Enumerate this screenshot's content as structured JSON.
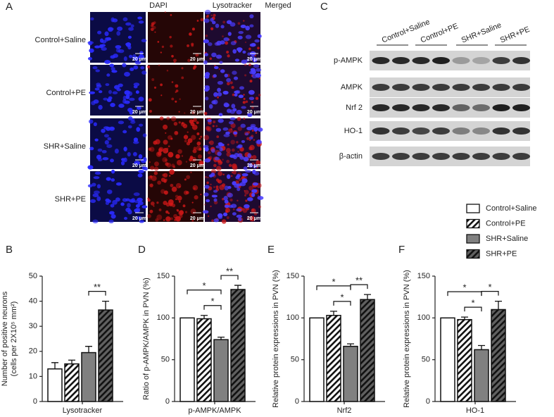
{
  "panel_a": {
    "letter": "A",
    "columns": [
      "DAPI",
      "Lysotracker",
      "Merged"
    ],
    "rows": [
      "Control+Saline",
      "Control+PE",
      "SHR+Saline",
      "SHR+PE"
    ],
    "scale_bar": "20 μm"
  },
  "panel_c": {
    "letter": "C",
    "groups": [
      "Control+Saline",
      "Control+PE",
      "SHR+Saline",
      "SHR+PE"
    ],
    "proteins": [
      "p-AMPK",
      "AMPK",
      "Nrf 2",
      "HO-1",
      "β-actin"
    ]
  },
  "legend": {
    "entries": [
      {
        "label": "Control+Saline",
        "color": "#ffffff",
        "hatch": false
      },
      {
        "label": "Control+PE",
        "color": "#ffffff",
        "hatch": true
      },
      {
        "label": "SHR+Saline",
        "color": "#808080",
        "hatch": false
      },
      {
        "label": "SHR+PE",
        "color": "#606060",
        "hatch": true
      }
    ]
  },
  "chart_data": [
    {
      "type": "bar",
      "panel": "B",
      "ylabel": [
        "Number of positive neurons",
        "(cells per 2X10⁵ mm²)"
      ],
      "xlabel": "Lysotracker",
      "values": [
        13,
        15,
        19.5,
        36.5
      ],
      "errors": [
        2.5,
        1.5,
        2.5,
        3.5
      ],
      "ylim": [
        0,
        50
      ],
      "yticks": [
        0,
        10,
        20,
        30,
        40,
        50
      ],
      "significance": [
        {
          "text": "**",
          "bars": [
            2,
            3
          ]
        }
      ]
    },
    {
      "type": "bar",
      "panel": "D",
      "ylabel": [
        "Ratio of p-AMPK/AMPK in PVN (%)"
      ],
      "xlabel": "p-AMPK/AMPK",
      "values": [
        100,
        99,
        74,
        134
      ],
      "errors": [
        0,
        4,
        3,
        5
      ],
      "ylim": [
        0,
        150
      ],
      "yticks": [
        0,
        50,
        100,
        150
      ],
      "significance": [
        {
          "text": "*",
          "bars": [
            1,
            2
          ]
        },
        {
          "text": "*",
          "bars": [
            0,
            2
          ]
        },
        {
          "text": "**",
          "bars": [
            2,
            3
          ]
        }
      ]
    },
    {
      "type": "bar",
      "panel": "E",
      "ylabel": [
        "Relative protein expressions in PVN (%)"
      ],
      "xlabel": "Nrf2",
      "values": [
        100,
        103,
        66,
        122
      ],
      "errors": [
        0,
        5,
        3,
        6
      ],
      "ylim": [
        0,
        150
      ],
      "yticks": [
        0,
        50,
        100,
        150
      ],
      "significance": [
        {
          "text": "*",
          "bars": [
            1,
            2
          ]
        },
        {
          "text": "*",
          "bars": [
            0,
            2
          ]
        },
        {
          "text": "**",
          "bars": [
            2,
            3
          ]
        }
      ]
    },
    {
      "type": "bar",
      "panel": "F",
      "ylabel": [
        "Relative protein expressions in PVN (%)"
      ],
      "xlabel": "HO-1",
      "values": [
        100,
        98,
        62,
        110
      ],
      "errors": [
        0,
        3,
        5,
        10
      ],
      "ylim": [
        0,
        150
      ],
      "yticks": [
        0,
        50,
        100,
        150
      ],
      "significance": [
        {
          "text": "*",
          "bars": [
            1,
            2
          ]
        },
        {
          "text": "*",
          "bars": [
            0,
            2
          ]
        },
        {
          "text": "*",
          "bars": [
            2,
            3
          ]
        }
      ]
    }
  ]
}
